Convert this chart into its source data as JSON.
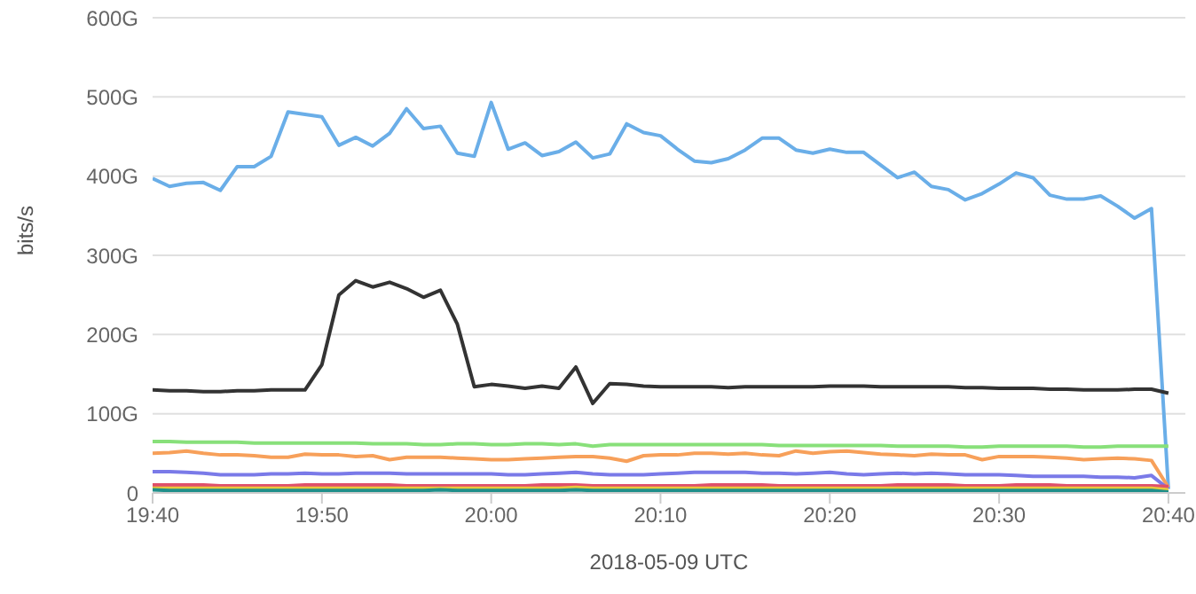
{
  "chart_data": {
    "type": "line",
    "xlabel": "2018-05-09 UTC",
    "ylabel": "bits/s",
    "x": [
      "2018-05-09T19:40",
      "2018-05-09T19:41",
      "2018-05-09T19:42",
      "2018-05-09T19:43",
      "2018-05-09T19:44",
      "2018-05-09T19:45",
      "2018-05-09T19:46",
      "2018-05-09T19:47",
      "2018-05-09T19:48",
      "2018-05-09T19:49",
      "2018-05-09T19:50",
      "2018-05-09T19:51",
      "2018-05-09T19:52",
      "2018-05-09T19:53",
      "2018-05-09T19:54",
      "2018-05-09T19:55",
      "2018-05-09T19:56",
      "2018-05-09T19:57",
      "2018-05-09T19:58",
      "2018-05-09T19:59",
      "2018-05-09T20:00",
      "2018-05-09T20:01",
      "2018-05-09T20:02",
      "2018-05-09T20:03",
      "2018-05-09T20:04",
      "2018-05-09T20:05",
      "2018-05-09T20:06",
      "2018-05-09T20:07",
      "2018-05-09T20:08",
      "2018-05-09T20:09",
      "2018-05-09T20:10",
      "2018-05-09T20:11",
      "2018-05-09T20:12",
      "2018-05-09T20:13",
      "2018-05-09T20:14",
      "2018-05-09T20:15",
      "2018-05-09T20:16",
      "2018-05-09T20:17",
      "2018-05-09T20:18",
      "2018-05-09T20:19",
      "2018-05-09T20:20",
      "2018-05-09T20:21",
      "2018-05-09T20:22",
      "2018-05-09T20:23",
      "2018-05-09T20:24",
      "2018-05-09T20:25",
      "2018-05-09T20:26",
      "2018-05-09T20:27",
      "2018-05-09T20:28",
      "2018-05-09T20:29",
      "2018-05-09T20:30",
      "2018-05-09T20:31",
      "2018-05-09T20:32",
      "2018-05-09T20:33",
      "2018-05-09T20:34",
      "2018-05-09T20:35",
      "2018-05-09T20:36",
      "2018-05-09T20:37",
      "2018-05-09T20:38",
      "2018-05-09T20:39",
      "2018-05-09T20:40"
    ],
    "series": [
      {
        "color": "#6aaee8",
        "values": [
          397,
          387,
          391,
          392,
          382,
          412,
          412,
          425,
          481,
          478,
          475,
          439,
          449,
          438,
          454,
          485,
          460,
          463,
          429,
          425,
          493,
          434,
          442,
          426,
          431,
          443,
          423,
          428,
          466,
          455,
          451,
          434,
          419,
          417,
          422,
          433,
          448,
          448,
          433,
          429,
          434,
          430,
          430,
          414,
          398,
          405,
          387,
          383,
          370,
          378,
          390,
          404,
          398,
          376,
          371,
          371,
          375,
          362,
          347,
          359,
          5
        ]
      },
      {
        "color": "#333333",
        "values": [
          130,
          129,
          129,
          128,
          128,
          129,
          129,
          130,
          130,
          130,
          162,
          250,
          268,
          260,
          266,
          258,
          247,
          256,
          213,
          134,
          137,
          135,
          132,
          135,
          132,
          159,
          113,
          138,
          137,
          135,
          134,
          134,
          134,
          134,
          133,
          134,
          134,
          134,
          134,
          134,
          135,
          135,
          135,
          134,
          134,
          134,
          134,
          134,
          133,
          133,
          132,
          132,
          132,
          131,
          131,
          130,
          130,
          130,
          131,
          131,
          126
        ]
      },
      {
        "color": "#88e07a",
        "values": [
          65,
          65,
          64,
          64,
          64,
          64,
          63,
          63,
          63,
          63,
          63,
          63,
          63,
          62,
          62,
          62,
          61,
          61,
          62,
          62,
          61,
          61,
          62,
          62,
          61,
          62,
          59,
          61,
          61,
          61,
          61,
          61,
          61,
          61,
          61,
          61,
          61,
          60,
          60,
          60,
          60,
          60,
          60,
          60,
          59,
          59,
          59,
          59,
          58,
          58,
          59,
          59,
          59,
          59,
          59,
          58,
          58,
          59,
          59,
          59,
          59
        ]
      },
      {
        "color": "#f7a05a",
        "values": [
          50,
          51,
          53,
          50,
          48,
          48,
          47,
          45,
          45,
          49,
          48,
          48,
          46,
          47,
          42,
          45,
          45,
          45,
          44,
          43,
          42,
          42,
          43,
          44,
          45,
          46,
          46,
          44,
          40,
          47,
          48,
          48,
          50,
          50,
          49,
          50,
          48,
          47,
          53,
          50,
          52,
          53,
          51,
          49,
          48,
          47,
          49,
          48,
          48,
          42,
          46,
          46,
          46,
          45,
          44,
          42,
          43,
          44,
          43,
          41,
          7
        ]
      },
      {
        "color": "#7a7ae8",
        "values": [
          27,
          27,
          26,
          25,
          23,
          23,
          23,
          24,
          24,
          25,
          24,
          24,
          25,
          25,
          25,
          24,
          24,
          24,
          24,
          24,
          24,
          23,
          23,
          24,
          25,
          26,
          24,
          23,
          23,
          23,
          24,
          25,
          26,
          26,
          26,
          26,
          25,
          25,
          24,
          25,
          26,
          24,
          23,
          24,
          25,
          24,
          25,
          24,
          23,
          23,
          23,
          22,
          21,
          21,
          21,
          21,
          20,
          20,
          19,
          22,
          5
        ]
      },
      {
        "color": "#e0506a",
        "values": [
          10,
          10,
          10,
          10,
          9,
          9,
          9,
          9,
          9,
          10,
          10,
          10,
          10,
          10,
          10,
          9,
          9,
          9,
          9,
          9,
          9,
          9,
          9,
          10,
          10,
          10,
          9,
          9,
          9,
          9,
          9,
          9,
          9,
          10,
          10,
          10,
          10,
          9,
          9,
          9,
          9,
          9,
          9,
          9,
          10,
          10,
          10,
          10,
          9,
          9,
          9,
          10,
          10,
          10,
          9,
          9,
          9,
          9,
          9,
          9,
          8
        ]
      },
      {
        "color": "#e8c83c",
        "values": [
          6,
          6,
          6,
          6,
          6,
          6,
          6,
          6,
          6,
          6,
          6,
          6,
          6,
          6,
          6,
          6,
          6,
          6,
          6,
          6,
          6,
          6,
          6,
          6,
          6,
          7,
          6,
          6,
          6,
          6,
          6,
          6,
          6,
          6,
          6,
          6,
          6,
          6,
          6,
          6,
          6,
          6,
          6,
          6,
          6,
          6,
          6,
          6,
          6,
          6,
          6,
          6,
          6,
          6,
          6,
          6,
          6,
          6,
          6,
          6,
          4
        ]
      },
      {
        "color": "#1f8f8a",
        "values": [
          4,
          3,
          3,
          3,
          3,
          3,
          3,
          3,
          3,
          3,
          3,
          3,
          3,
          3,
          3,
          3,
          3,
          4,
          3,
          3,
          3,
          3,
          3,
          3,
          3,
          4,
          3,
          3,
          3,
          3,
          3,
          3,
          3,
          3,
          3,
          3,
          3,
          3,
          3,
          3,
          3,
          3,
          3,
          3,
          3,
          3,
          3,
          3,
          3,
          3,
          3,
          3,
          3,
          3,
          3,
          3,
          3,
          3,
          3,
          3,
          1
        ]
      }
    ],
    "xlim": [
      "2018-05-09T19:40",
      "2018-05-09T20:41"
    ],
    "xticks": [
      {
        "value": "2018-05-09T19:40",
        "label": "19:40"
      },
      {
        "value": "2018-05-09T19:50",
        "label": "19:50"
      },
      {
        "value": "2018-05-09T20:00",
        "label": "20:00"
      },
      {
        "value": "2018-05-09T20:10",
        "label": "20:10"
      },
      {
        "value": "2018-05-09T20:20",
        "label": "20:20"
      },
      {
        "value": "2018-05-09T20:30",
        "label": "20:30"
      },
      {
        "value": "2018-05-09T20:40",
        "label": "20:40"
      }
    ],
    "ylim": [
      0,
      600
    ],
    "yticks": [
      0,
      {
        "value": 100,
        "label": "100G"
      },
      {
        "value": 200,
        "label": "200G"
      },
      {
        "value": 300,
        "label": "300G"
      },
      {
        "value": 400,
        "label": "400G"
      },
      {
        "value": 500,
        "label": "500G"
      },
      {
        "value": 600,
        "label": "600G"
      }
    ],
    "grid": "y",
    "legend": false,
    "marker": "none",
    "line_style": "solid"
  }
}
